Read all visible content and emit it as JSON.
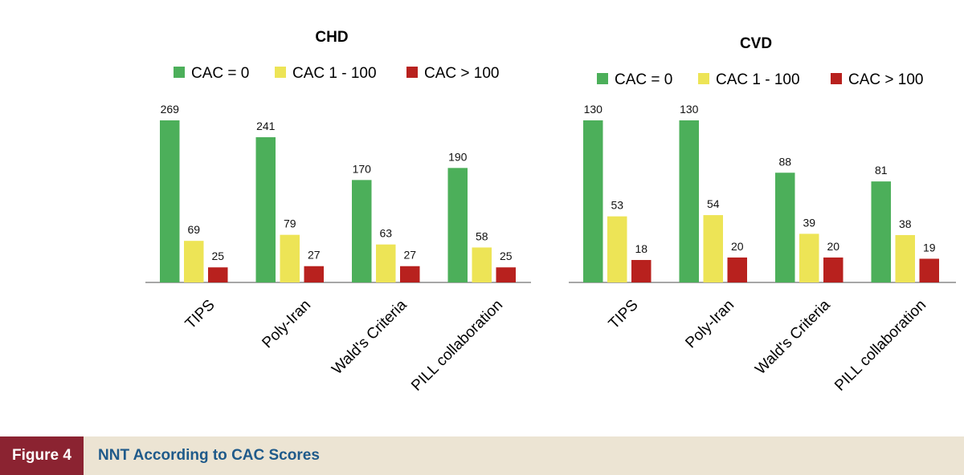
{
  "chart_data": [
    {
      "type": "bar",
      "title": "CHD",
      "categories": [
        "TIPS",
        "Poly-Iran",
        "Wald's Criteria",
        "PILL collaboration"
      ],
      "series": [
        {
          "name": "CAC = 0",
          "color": "#4caf5a",
          "values": [
            269,
            241,
            170,
            190
          ]
        },
        {
          "name": "CAC 1 - 100",
          "color": "#ede456",
          "values": [
            69,
            79,
            63,
            58
          ]
        },
        {
          "name": "CAC > 100",
          "color": "#b8211e",
          "values": [
            25,
            27,
            27,
            25
          ]
        }
      ],
      "ylim": [
        0,
        269
      ],
      "grid": false,
      "legend": "top"
    },
    {
      "type": "bar",
      "title": "CVD",
      "categories": [
        "TIPS",
        "Poly-Iran",
        "Wald's Criteria",
        "PILL collaboration"
      ],
      "series": [
        {
          "name": "CAC = 0",
          "color": "#4caf5a",
          "values": [
            130,
            130,
            88,
            81
          ]
        },
        {
          "name": "CAC 1 - 100",
          "color": "#ede456",
          "values": [
            53,
            54,
            39,
            38
          ]
        },
        {
          "name": "CAC > 100",
          "color": "#b8211e",
          "values": [
            18,
            20,
            20,
            19
          ]
        }
      ],
      "ylim": [
        0,
        130
      ],
      "grid": false,
      "legend": "top"
    }
  ],
  "figure": {
    "label": "Figure 4",
    "caption": "NNT According to CAC Scores"
  }
}
